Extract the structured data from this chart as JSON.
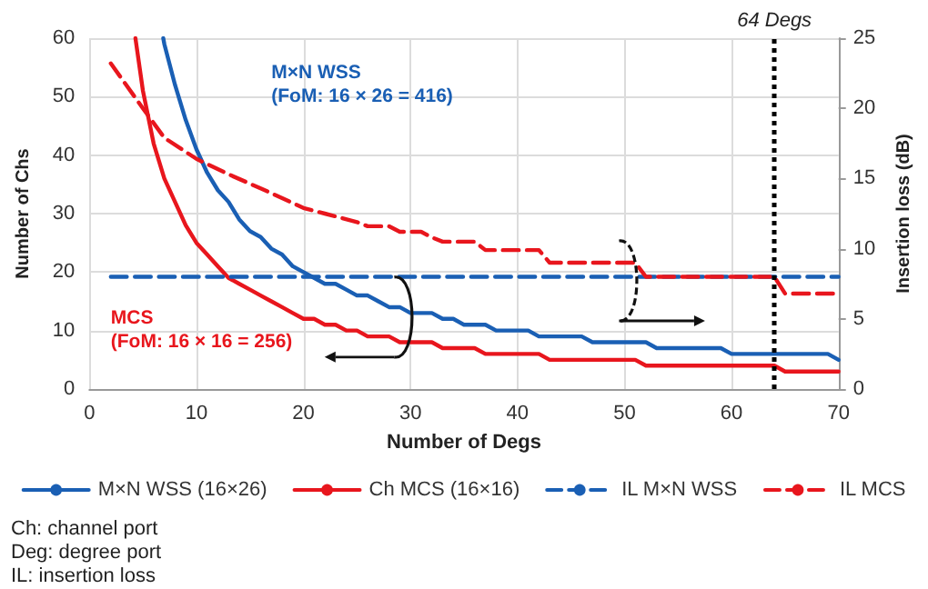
{
  "chart_data": {
    "type": "line",
    "xlabel": "Number of Degs",
    "ylabel": "Number of Chs",
    "y2label": "Insertion loss (dB)",
    "xlim": [
      0,
      70
    ],
    "xticks": [
      0,
      10,
      20,
      30,
      40,
      50,
      60,
      70
    ],
    "ylim": [
      0,
      60
    ],
    "yticks": [
      0,
      10,
      20,
      30,
      40,
      50,
      60
    ],
    "y2lim": [
      0,
      25
    ],
    "y2ticks": [
      0,
      5,
      10,
      15,
      20,
      25
    ],
    "grid": true,
    "legend": "bottom",
    "marker": "none",
    "series": [
      {
        "name": "M×N WSS (16×26)",
        "color": "#1a5fb4",
        "line_style": "solid",
        "x": [
          6.9,
          7,
          8,
          9,
          10,
          11,
          12,
          13,
          14,
          15,
          16,
          17,
          18,
          19,
          20,
          21,
          22,
          23,
          24,
          25,
          26,
          27,
          28,
          29,
          30,
          31,
          32,
          33,
          34,
          35,
          36,
          37,
          38,
          39,
          40,
          41,
          42,
          43,
          44,
          45,
          46,
          47,
          48,
          49,
          50,
          51,
          52,
          53,
          54,
          55,
          56,
          57,
          58,
          59,
          60,
          61,
          62,
          63,
          64,
          65,
          66,
          67,
          68,
          69,
          70
        ],
        "values": [
          60,
          59,
          52,
          46,
          41,
          37,
          34,
          32,
          29,
          27,
          26,
          24,
          23,
          21,
          20,
          19,
          18,
          18,
          17,
          16,
          16,
          15,
          14,
          14,
          13,
          13,
          13,
          12,
          12,
          11,
          11,
          11,
          10,
          10,
          10,
          10,
          9,
          9,
          9,
          9,
          9,
          8,
          8,
          8,
          8,
          8,
          8,
          7,
          7,
          7,
          7,
          7,
          7,
          7,
          6,
          6,
          6,
          6,
          6,
          6,
          6,
          6,
          6,
          6,
          5
        ]
      },
      {
        "name": "Ch MCS (16×16)",
        "color": "#e8161d",
        "line_style": "solid",
        "x": [
          4.3,
          5,
          6,
          7,
          8,
          9,
          10,
          11,
          12,
          13,
          14,
          15,
          16,
          17,
          18,
          19,
          20,
          21,
          22,
          23,
          24,
          25,
          26,
          27,
          28,
          29,
          30,
          31,
          32,
          33,
          34,
          35,
          36,
          37,
          38,
          39,
          40,
          41,
          42,
          43,
          44,
          45,
          46,
          47,
          48,
          49,
          50,
          51,
          52,
          53,
          54,
          55,
          56,
          57,
          58,
          59,
          60,
          61,
          62,
          63,
          64,
          65,
          66,
          67,
          68,
          69,
          70
        ],
        "values": [
          60,
          51,
          42,
          36,
          32,
          28,
          25,
          23,
          21,
          19,
          18,
          17,
          16,
          15,
          14,
          13,
          12,
          12,
          11,
          11,
          10,
          10,
          9,
          9,
          9,
          8,
          8,
          8,
          8,
          7,
          7,
          7,
          7,
          6,
          6,
          6,
          6,
          6,
          6,
          5,
          5,
          5,
          5,
          5,
          5,
          5,
          5,
          5,
          4,
          4,
          4,
          4,
          4,
          4,
          4,
          4,
          4,
          4,
          4,
          4,
          4,
          3,
          3,
          3,
          3,
          3,
          3
        ]
      },
      {
        "name": "IL M×N WSS",
        "color": "#1a5fb4",
        "line_style": "dashed",
        "axis": "y2",
        "x": [
          2,
          70
        ],
        "values": [
          8,
          8
        ]
      },
      {
        "name": "IL MCS",
        "color": "#e8161d",
        "line_style": "dashed",
        "axis": "y2",
        "x": [
          2,
          5,
          7,
          10,
          13,
          16,
          20,
          22,
          25,
          26,
          28,
          29,
          31,
          32,
          33,
          36,
          37,
          42,
          43,
          51,
          52,
          64,
          65,
          70
        ],
        "values": [
          23.2,
          20,
          17.9,
          16.4,
          15.3,
          14.3,
          12.9,
          12.5,
          11.9,
          11.6,
          11.6,
          11.2,
          11.2,
          10.8,
          10.5,
          10.5,
          9.9,
          9.9,
          9,
          9,
          8,
          8,
          6.8,
          6.8
        ]
      }
    ],
    "ref_lines": [
      {
        "axis": "x",
        "value": 64,
        "label": "64 Degs",
        "color": "#000000",
        "line_style": "dotted"
      }
    ],
    "annotations": [
      "M×N WSS\n(FoM: 16 × 26 = 416)",
      "MCS\n(FoM: 16 × 16 = 256)",
      "Ch: channel port",
      "Deg: degree port",
      "IL: insertion loss"
    ]
  }
}
